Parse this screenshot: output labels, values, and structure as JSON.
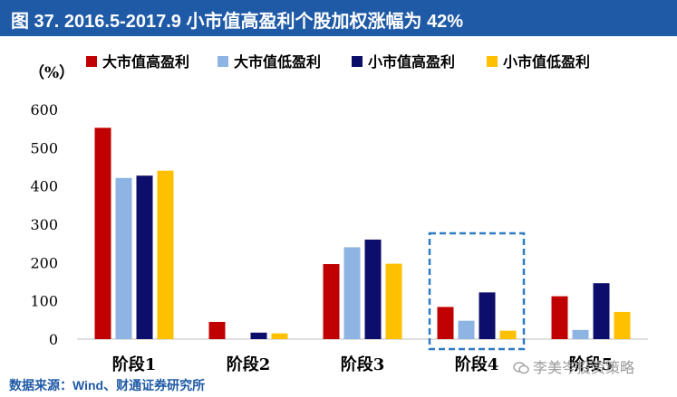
{
  "title": "图 37. 2016.5-2017.9 小市值高盈利个股加权涨幅为 42%",
  "source": "数据来源：Wind、财通证券研究所",
  "watermark": "李美岑投资策略",
  "chart_data": {
    "type": "bar",
    "ylabel": "（%）",
    "ylim": [
      0,
      600
    ],
    "yticks": [
      0,
      100,
      200,
      300,
      400,
      500,
      600
    ],
    "categories": [
      "阶段1",
      "阶段2",
      "阶段3",
      "阶段4",
      "阶段5"
    ],
    "legend_position": "top",
    "grid": false,
    "series": [
      {
        "name": "大市值高盈利",
        "color": "#c00000",
        "values": [
          552,
          45,
          196,
          84,
          112
        ]
      },
      {
        "name": "大市值低盈利",
        "color": "#8eb4e3",
        "values": [
          421,
          0,
          240,
          48,
          24
        ]
      },
      {
        "name": "小市值高盈利",
        "color": "#0d0d6b",
        "values": [
          427,
          17,
          260,
          122,
          146
        ]
      },
      {
        "name": "小市值低盈利",
        "color": "#ffc000",
        "values": [
          440,
          15,
          197,
          22,
          71
        ]
      }
    ],
    "highlight_category": "阶段4"
  }
}
